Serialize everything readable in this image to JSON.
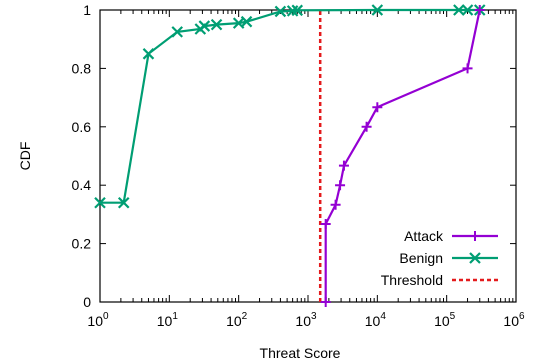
{
  "chart_data": {
    "type": "line",
    "xlabel": "Threat Score",
    "ylabel": "CDF",
    "x_scale": "log",
    "xlim": [
      1,
      1000000
    ],
    "ylim": [
      0,
      1
    ],
    "x_ticks": [
      {
        "value": 1,
        "base": "10",
        "exp": "0"
      },
      {
        "value": 10,
        "base": "10",
        "exp": "1"
      },
      {
        "value": 100,
        "base": "10",
        "exp": "2"
      },
      {
        "value": 1000,
        "base": "10",
        "exp": "3"
      },
      {
        "value": 10000,
        "base": "10",
        "exp": "4"
      },
      {
        "value": 100000,
        "base": "10",
        "exp": "5"
      },
      {
        "value": 1000000,
        "base": "10",
        "exp": "6"
      }
    ],
    "y_ticks": [
      {
        "value": 0,
        "label": "0"
      },
      {
        "value": 0.2,
        "label": "0.2"
      },
      {
        "value": 0.4,
        "label": "0.4"
      },
      {
        "value": 0.6,
        "label": "0.6"
      },
      {
        "value": 0.8,
        "label": "0.8"
      },
      {
        "value": 1,
        "label": "1"
      }
    ],
    "grid": false,
    "legend_position": "bottom-right",
    "series": [
      {
        "name": "Attack",
        "color": "#9400d3",
        "marker": "plus",
        "points": [
          [
            1800,
            0
          ],
          [
            1800,
            0.267
          ],
          [
            2500,
            0.333
          ],
          [
            2900,
            0.4
          ],
          [
            3300,
            0.467
          ],
          [
            7000,
            0.6
          ],
          [
            10000,
            0.667
          ],
          [
            200000,
            0.8
          ],
          [
            300000,
            1.0
          ]
        ]
      },
      {
        "name": "Benign",
        "color": "#009e73",
        "marker": "cross",
        "points": [
          [
            1,
            0.34
          ],
          [
            2.2,
            0.34
          ],
          [
            5,
            0.85
          ],
          [
            13,
            0.925
          ],
          [
            28,
            0.935
          ],
          [
            32,
            0.945
          ],
          [
            48,
            0.95
          ],
          [
            100,
            0.955
          ],
          [
            130,
            0.96
          ],
          [
            400,
            0.995
          ],
          [
            600,
            0.997
          ],
          [
            700,
            0.999
          ],
          [
            10000,
            1.0
          ],
          [
            150000,
            1.0
          ],
          [
            200000,
            1.0
          ],
          [
            300000,
            1.0
          ]
        ]
      },
      {
        "name": "Threshold",
        "color": "#e41a1c",
        "style": "dashed",
        "points": [
          [
            1500,
            0
          ],
          [
            1500,
            1
          ]
        ]
      }
    ]
  }
}
